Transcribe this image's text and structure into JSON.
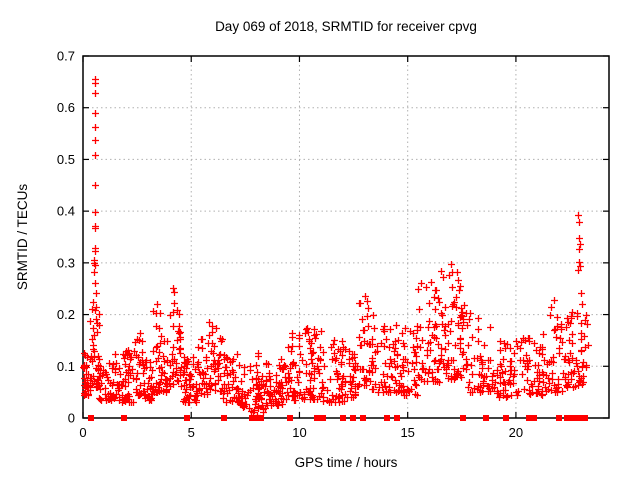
{
  "chart_data": {
    "type": "scatter",
    "title": "Day 069 of 2018, SRMTID for receiver cpvg",
    "xlabel": "GPS time / hours",
    "ylabel": "SRMTID / TECUs",
    "xlim": [
      0,
      24.3
    ],
    "ylim": [
      0,
      0.7
    ],
    "xticks": [
      0,
      5,
      10,
      15,
      20
    ],
    "xtick_labels": [
      "0",
      "5",
      "10",
      "15",
      "20"
    ],
    "yticks": [
      0,
      0.1,
      0.2,
      0.3,
      0.4,
      0.5,
      0.6,
      0.7
    ],
    "ytick_labels": [
      "0",
      "0.1",
      "0.2",
      "0.3",
      "0.4",
      "0.5",
      "0.6",
      "0.7"
    ],
    "grid": true,
    "legend": false,
    "marker": "plus",
    "marker_color": "#ff0000",
    "grid_color": "#b0b0b0",
    "border_color": "#000000",
    "background_color": "#ffffff",
    "outlier_points": [
      [
        0.54,
        0.655
      ],
      [
        0.56,
        0.648
      ],
      [
        0.55,
        0.629
      ],
      [
        0.55,
        0.59
      ],
      [
        0.555,
        0.563
      ],
      [
        0.55,
        0.538
      ],
      [
        0.545,
        0.509
      ],
      [
        0.555,
        0.451
      ],
      [
        0.55,
        0.399
      ],
      [
        0.545,
        0.371
      ],
      [
        0.555,
        0.367
      ],
      [
        0.55,
        0.329
      ],
      [
        0.558,
        0.323
      ],
      [
        0.505,
        0.306
      ],
      [
        0.53,
        0.3
      ],
      [
        0.565,
        0.296
      ],
      [
        0.52,
        0.282
      ],
      [
        0.575,
        0.262
      ],
      [
        0.6,
        0.242
      ],
      [
        0.47,
        0.225
      ],
      [
        0.62,
        0.215
      ],
      [
        3.42,
        0.221
      ],
      [
        3.38,
        0.204
      ],
      [
        4.18,
        0.252
      ],
      [
        4.22,
        0.244
      ],
      [
        4.2,
        0.222
      ],
      [
        4.32,
        0.208
      ],
      [
        13.05,
        0.235
      ],
      [
        13.1,
        0.226
      ],
      [
        13.18,
        0.212
      ],
      [
        16.55,
        0.285
      ],
      [
        16.62,
        0.272
      ],
      [
        17.0,
        0.298
      ],
      [
        17.06,
        0.282
      ],
      [
        17.33,
        0.267
      ],
      [
        17.4,
        0.255
      ],
      [
        21.78,
        0.228
      ],
      [
        22.88,
        0.393
      ],
      [
        22.93,
        0.379
      ],
      [
        22.9,
        0.349
      ],
      [
        22.95,
        0.337
      ],
      [
        22.91,
        0.327
      ],
      [
        22.93,
        0.302
      ],
      [
        22.97,
        0.294
      ],
      [
        22.89,
        0.286
      ],
      [
        23.0,
        0.242
      ],
      [
        23.04,
        0.221
      ],
      [
        23.12,
        0.108
      ]
    ],
    "clusters": {
      "format": [
        "x_start",
        "x_end",
        "count",
        "y_min",
        "y_max",
        "power_bias"
      ],
      "rows": [
        [
          0.02,
          0.35,
          30,
          0.045,
          0.135,
          1.6
        ],
        [
          0.3,
          0.75,
          40,
          0.06,
          0.23,
          1.9
        ],
        [
          0.75,
          1.55,
          45,
          0.035,
          0.125,
          1.6
        ],
        [
          1.55,
          2.35,
          55,
          0.03,
          0.135,
          1.6
        ],
        [
          2.35,
          2.75,
          25,
          0.045,
          0.165,
          1.7
        ],
        [
          2.75,
          3.2,
          35,
          0.035,
          0.12,
          1.6
        ],
        [
          3.2,
          3.65,
          30,
          0.05,
          0.21,
          1.8
        ],
        [
          3.65,
          3.95,
          20,
          0.05,
          0.15,
          1.6
        ],
        [
          3.95,
          4.5,
          35,
          0.06,
          0.23,
          1.8
        ],
        [
          4.5,
          5.25,
          50,
          0.03,
          0.125,
          1.6
        ],
        [
          5.25,
          5.75,
          30,
          0.045,
          0.155,
          1.7
        ],
        [
          5.75,
          6.45,
          40,
          0.05,
          0.2,
          1.8
        ],
        [
          6.45,
          7.25,
          45,
          0.03,
          0.125,
          1.6
        ],
        [
          7.25,
          7.75,
          25,
          0.02,
          0.1,
          1.6
        ],
        [
          7.75,
          8.45,
          30,
          0.012,
          0.085,
          1.5
        ],
        [
          7.95,
          8.15,
          14,
          0.005,
          0.13,
          1.2
        ],
        [
          8.45,
          9.35,
          55,
          0.025,
          0.115,
          1.6
        ],
        [
          9.35,
          10.2,
          45,
          0.035,
          0.165,
          1.7
        ],
        [
          10.2,
          11.05,
          50,
          0.035,
          0.175,
          1.7
        ],
        [
          11.05,
          12.05,
          50,
          0.03,
          0.155,
          1.6
        ],
        [
          12.05,
          12.6,
          30,
          0.04,
          0.135,
          1.6
        ],
        [
          12.6,
          13.35,
          35,
          0.06,
          0.225,
          1.7
        ],
        [
          13.35,
          14.55,
          55,
          0.05,
          0.2,
          1.8
        ],
        [
          14.55,
          15.45,
          45,
          0.045,
          0.185,
          1.7
        ],
        [
          15.45,
          16.65,
          60,
          0.07,
          0.27,
          1.8
        ],
        [
          16.65,
          17.65,
          60,
          0.075,
          0.285,
          1.7
        ],
        [
          17.65,
          18.85,
          55,
          0.05,
          0.215,
          1.8
        ],
        [
          18.85,
          20.25,
          60,
          0.04,
          0.155,
          1.6
        ],
        [
          20.25,
          21.35,
          55,
          0.045,
          0.17,
          1.6
        ],
        [
          21.35,
          22.35,
          45,
          0.05,
          0.215,
          1.8
        ],
        [
          22.35,
          23.05,
          40,
          0.06,
          0.21,
          1.7
        ],
        [
          23.0,
          23.35,
          15,
          0.07,
          0.205,
          1.4
        ]
      ]
    },
    "zero_square_hours": [
      0.39,
      1.9,
      4.82,
      6.53,
      7.8,
      7.95,
      8.1,
      8.22,
      9.54,
      10.8,
      10.95,
      11.1,
      12.0,
      12.48,
      12.94,
      14.05,
      14.5,
      17.55,
      18.6,
      19.55,
      20.62,
      20.83,
      21.97,
      22.37,
      22.5,
      22.63,
      22.75,
      22.92,
      23.18
    ],
    "seed": 20180069
  }
}
